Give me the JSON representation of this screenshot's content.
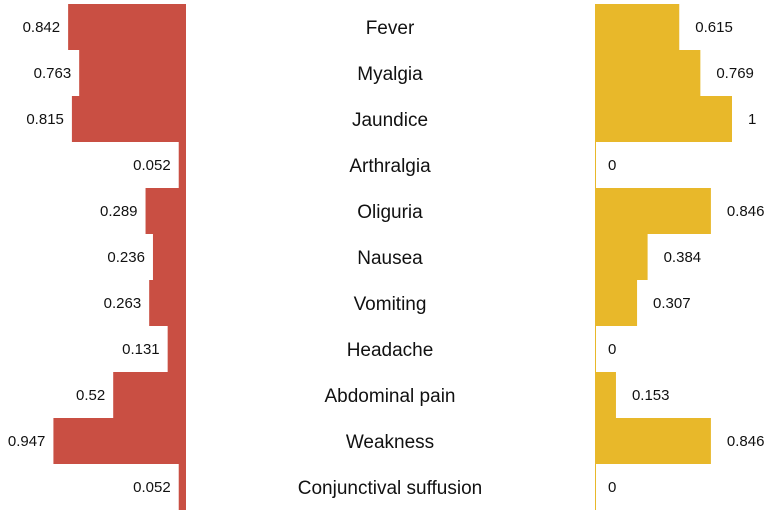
{
  "chart_data": {
    "type": "bar",
    "orientation": "horizontal",
    "layout": "butterfly",
    "categories": [
      "Fever",
      "Myalgia",
      "Jaundice",
      "Arthralgia",
      "Oliguria",
      "Nausea",
      "Vomiting",
      "Headache",
      "Abdominal pain",
      "Weakness",
      "Conjunctival suffusion"
    ],
    "series": [
      {
        "side": "left",
        "color": "#C94F43",
        "values": [
          0.842,
          0.763,
          0.815,
          0.052,
          0.289,
          0.236,
          0.263,
          0.131,
          0.52,
          0.947,
          0.052
        ],
        "labels": [
          "0.842",
          "0.763",
          "0.815",
          "0.052",
          "0.289",
          "0.236",
          "0.263",
          "0.131",
          "0.52",
          "0.947",
          "0.052"
        ]
      },
      {
        "side": "right",
        "color": "#E8B82A",
        "values": [
          0.615,
          0.769,
          1,
          0,
          0.846,
          0.384,
          0.307,
          0,
          0.153,
          0.846,
          0
        ],
        "labels": [
          "0.615",
          "0.769",
          "1",
          "0",
          "0.846",
          "0.384",
          "0.307",
          "0",
          "0.153",
          "0.846",
          "0"
        ]
      }
    ],
    "xlim": [
      0,
      1
    ],
    "grid": false,
    "legend": "none",
    "title": "",
    "xlabel": "",
    "ylabel": ""
  }
}
